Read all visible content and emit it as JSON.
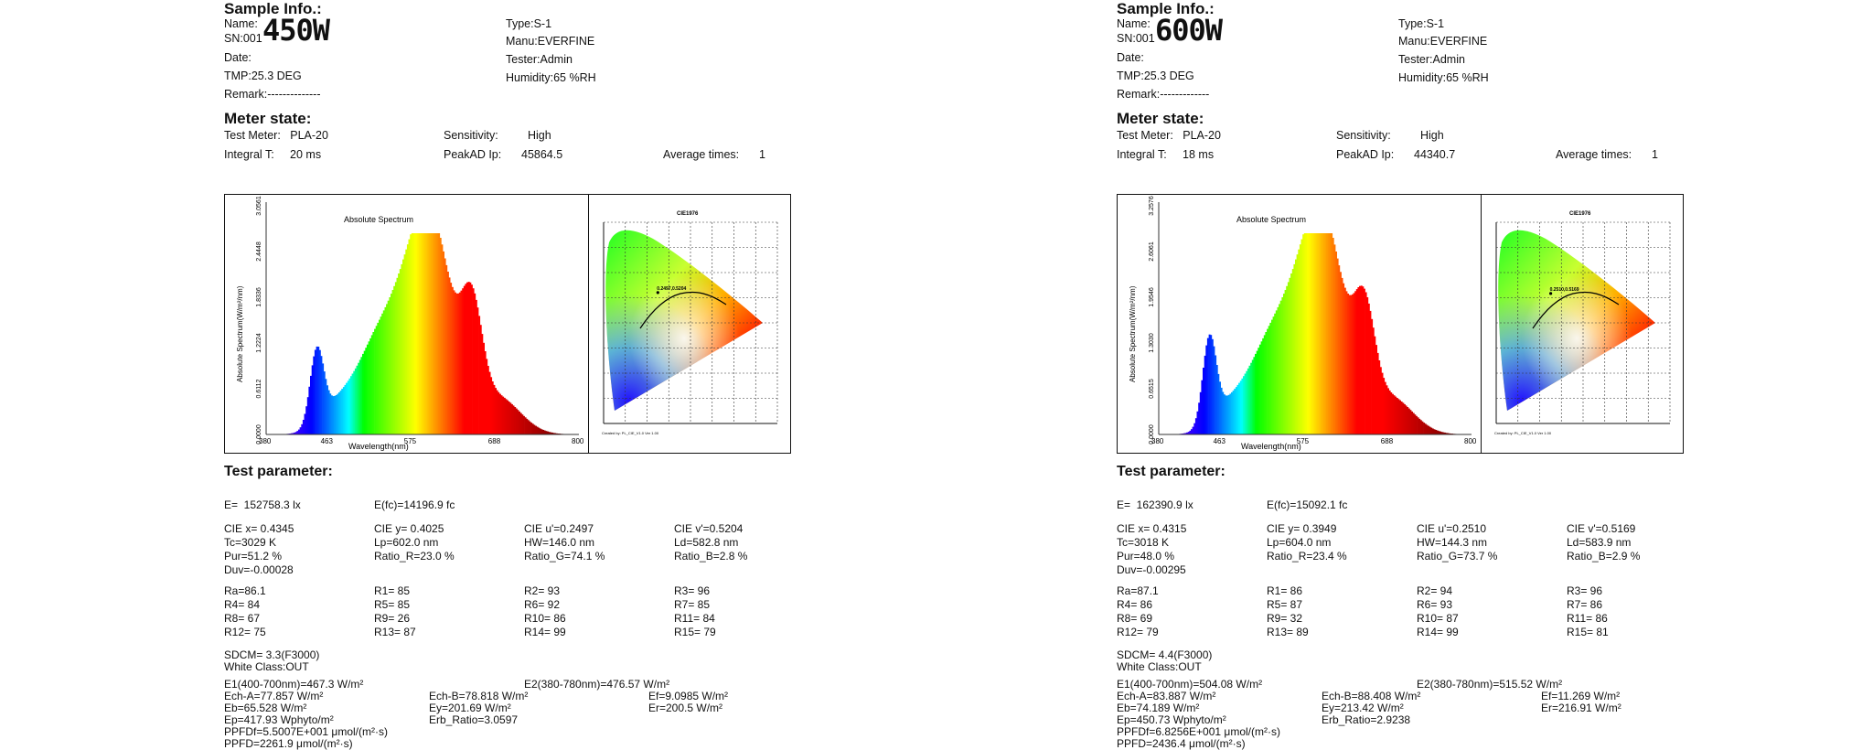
{
  "colors": {
    "text": "#111111",
    "frame": "#111111",
    "planck_line": "#000000"
  },
  "reports": [
    {
      "id": "rep-450",
      "sample": {
        "title": "Sample Info.:",
        "name_label": "Name:",
        "big_label": "450W",
        "sn": "SN:001",
        "date": "Date:",
        "tmp": "TMP:25.3 DEG",
        "remark": "Remark:--------------",
        "type": "Type:S-1",
        "manu": "Manu:EVERFINE",
        "tester": "Tester:Admin",
        "humidity": "Humidity:65 %RH"
      },
      "meter": {
        "title": "Meter state:",
        "test_meter": "Test Meter:   PLA-20",
        "integral": "Integral T:     20 ms",
        "sensitivity_label": "Sensitivity:",
        "sensitivity_value": "High",
        "peakad_label": "PeakAD Ip:",
        "peakad_value": "45864.5",
        "avg_label": "Average times:",
        "avg_value": "1"
      },
      "spectrum": {
        "title": "Absolute Spectrum",
        "xlabel": "Wavelength(nm)",
        "ylabel": "Absolute Spectrum(W/m²/nm)",
        "xticks": [
          "380",
          "463",
          "575",
          "688",
          "800"
        ],
        "yticks": [
          "0.0000",
          "0.6112",
          "1.2224",
          "1.8336",
          "2.4448",
          "3.0561"
        ]
      },
      "cie": {
        "title": "CIE1976",
        "coord_label": "0.2497,0.5204",
        "footer": "Created by: PL_CIE_V1.0 Ver 1.00"
      },
      "params": {
        "title": "Test parameter:",
        "e": "E=  152758.3 lx",
        "efc": "E(fc)=14196.9 fc",
        "cie_x": "CIE x= 0.4345",
        "cie_y": "CIE y= 0.4025",
        "cie_u": "CIE u'=0.2497",
        "cie_v": "CIE v'=0.5204",
        "tc": "Tc=3029 K",
        "lp": "Lp=602.0 nm",
        "hw": "HW=146.0 nm",
        "ld": "Ld=582.8 nm",
        "pur": "Pur=51.2 %",
        "ratio_r": "Ratio_R=23.0 %",
        "ratio_g": "Ratio_G=74.1 %",
        "ratio_b": "Ratio_B=2.8 %",
        "duv": "Duv=-0.00028",
        "ra": "Ra=86.1",
        "r1": "R1= 85",
        "r2": "R2= 93",
        "r3": "R3= 96",
        "r4": "R4= 84",
        "r5": "R5= 85",
        "r6": "R6= 92",
        "r7": "R7= 85",
        "r8": "R8= 67",
        "r9": "R9= 26",
        "r10": "R10= 86",
        "r11": "R11= 84",
        "r12": "R12= 75",
        "r13": "R13= 87",
        "r14": "R14= 99",
        "r15": "R15= 79",
        "sdcm": "SDCM= 3.3(F3000)",
        "white_class": "White Class:OUT",
        "e1": "E1(400-700nm)=467.3 W/m²",
        "e2": "E2(380-780nm)=476.57 W/m²",
        "ech_a": "Ech-A=77.857 W/m²",
        "ech_b": "Ech-B=78.818 W/m²",
        "ef": "Ef=9.0985 W/m²",
        "eb": "Eb=65.528 W/m²",
        "ey": "Ey=201.69 W/m²",
        "er": "Er=200.5 W/m²",
        "ep": "Ep=417.93 Wphyto/m²",
        "erb": "Erb_Ratio=3.0597",
        "ppfdf": "PPFDf=5.5007E+001 μmol/(m²·s)",
        "ppfd": "PPFD=2261.9 μmol/(m²·s)"
      }
    },
    {
      "id": "rep-600",
      "sample": {
        "title": "Sample Info.:",
        "name_label": "Name:",
        "big_label": "600W",
        "sn": "SN:001",
        "date": "Date:",
        "tmp": "TMP:25.3 DEG",
        "remark": "Remark:-------------",
        "type": "Type:S-1",
        "manu": "Manu:EVERFINE",
        "tester": "Tester:Admin",
        "humidity": "Humidity:65 %RH"
      },
      "meter": {
        "title": "Meter state:",
        "test_meter": "Test Meter:   PLA-20",
        "integral": "Integral T:     18 ms",
        "sensitivity_label": "Sensitivity:",
        "sensitivity_value": "High",
        "peakad_label": "PeakAD Ip:",
        "peakad_value": "44340.7",
        "avg_label": "Average times:",
        "avg_value": "1"
      },
      "spectrum": {
        "title": "Absolute Spectrum",
        "xlabel": "Wavelength(nm)",
        "ylabel": "Absolute Spectrum(W/m²/nm)",
        "xticks": [
          "380",
          "463",
          "575",
          "688",
          "800"
        ],
        "yticks": [
          "0.0000",
          "0.6515",
          "1.3030",
          "1.9546",
          "2.6061",
          "3.2576"
        ]
      },
      "cie": {
        "title": "CIE1976",
        "coord_label": "0.2510,0.5169",
        "footer": "Created by: PL_CIE_V1.0 Ver 1.00"
      },
      "params": {
        "title": "Test parameter:",
        "e": "E=  162390.9 lx",
        "efc": "E(fc)=15092.1 fc",
        "cie_x": "CIE x= 0.4315",
        "cie_y": "CIE y= 0.3949",
        "cie_u": "CIE u'=0.2510",
        "cie_v": "CIE v'=0.5169",
        "tc": "Tc=3018 K",
        "lp": "Lp=604.0 nm",
        "hw": "HW=144.3 nm",
        "ld": "Ld=583.9 nm",
        "pur": "Pur=48.0 %",
        "ratio_r": "Ratio_R=23.4 %",
        "ratio_g": "Ratio_G=73.7 %",
        "ratio_b": "Ratio_B=2.9 %",
        "duv": "Duv=-0.00295",
        "ra": "Ra=87.1",
        "r1": "R1= 86",
        "r2": "R2= 94",
        "r3": "R3= 96",
        "r4": "R4= 86",
        "r5": "R5= 87",
        "r6": "R6= 93",
        "r7": "R7= 86",
        "r8": "R8= 69",
        "r9": "R9= 32",
        "r10": "R10= 87",
        "r11": "R11= 86",
        "r12": "R12= 79",
        "r13": "R13= 89",
        "r14": "R14= 99",
        "r15": "R15= 81",
        "sdcm": "SDCM= 4.4(F3000)",
        "white_class": "White Class:OUT",
        "e1": "E1(400-700nm)=504.08 W/m²",
        "e2": "E2(380-780nm)=515.52 W/m²",
        "ech_a": "Ech-A=83.887 W/m²",
        "ech_b": "Ech-B=88.408 W/m²",
        "ef": "Ef=11.269 W/m²",
        "eb": "Eb=74.189 W/m²",
        "ey": "Ey=213.42 W/m²",
        "er": "Er=216.91 W/m²",
        "ep": "Ep=450.73 Wphyto/m²",
        "erb": "Erb_Ratio=2.9238",
        "ppfdf": "PPFDf=6.8256E+001 μmol/(m²·s)",
        "ppfd": "PPFD=2436.4 μmol/(m²·s)"
      }
    }
  ]
}
